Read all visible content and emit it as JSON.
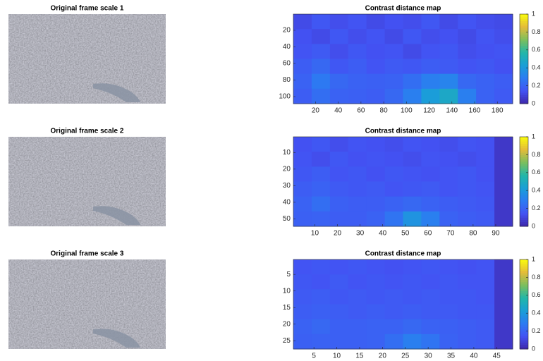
{
  "chart_data": [
    {
      "type": "image",
      "title": "Original frame scale 1"
    },
    {
      "type": "heatmap",
      "title": "Contrast distance map",
      "xlim": [
        0.5,
        193.5
      ],
      "ylim": [
        0.5,
        108.5
      ],
      "xticks": [
        20,
        40,
        60,
        80,
        100,
        120,
        140,
        160,
        180
      ],
      "yticks": [
        20,
        40,
        60,
        80,
        100
      ],
      "clim": [
        0,
        1
      ],
      "cticks": [
        0,
        0.2,
        0.4,
        0.6,
        0.8,
        1
      ],
      "colormap": [
        "#3e26a8",
        "#4352f3",
        "#2c7bf2",
        "#1a9fd7",
        "#22b6a9",
        "#7bbf5e",
        "#e4bb3a",
        "#f9fb0e"
      ],
      "values": [
        [
          0.12,
          0.16,
          0.13,
          0.15,
          0.12,
          0.14,
          0.13,
          0.16,
          0.12,
          0.15,
          0.13,
          0.12
        ],
        [
          0.14,
          0.12,
          0.16,
          0.13,
          0.15,
          0.12,
          0.16,
          0.13,
          0.14,
          0.12,
          0.15,
          0.13
        ],
        [
          0.15,
          0.17,
          0.13,
          0.16,
          0.14,
          0.15,
          0.12,
          0.15,
          0.16,
          0.13,
          0.14,
          0.15
        ],
        [
          0.18,
          0.22,
          0.16,
          0.18,
          0.15,
          0.17,
          0.16,
          0.18,
          0.17,
          0.15,
          0.16,
          0.14
        ],
        [
          0.2,
          0.28,
          0.22,
          0.2,
          0.19,
          0.2,
          0.24,
          0.3,
          0.32,
          0.22,
          0.2,
          0.18
        ],
        [
          0.18,
          0.24,
          0.2,
          0.19,
          0.18,
          0.22,
          0.3,
          0.42,
          0.48,
          0.3,
          0.2,
          0.17
        ]
      ]
    },
    {
      "type": "image",
      "title": "Original frame scale 2"
    },
    {
      "type": "heatmap",
      "title": "Contrast distance map",
      "xlim": [
        0.5,
        97.5
      ],
      "ylim": [
        0.5,
        54.5
      ],
      "xticks": [
        10,
        20,
        30,
        40,
        50,
        60,
        70,
        80,
        90
      ],
      "yticks": [
        10,
        20,
        30,
        40,
        50
      ],
      "clim": [
        0,
        1
      ],
      "cticks": [
        0,
        0.2,
        0.4,
        0.6,
        0.8,
        1
      ],
      "colormap": [
        "#3e26a8",
        "#4352f3",
        "#2c7bf2",
        "#1a9fd7",
        "#22b6a9",
        "#7bbf5e",
        "#e4bb3a",
        "#f9fb0e"
      ],
      "values": [
        [
          0.14,
          0.16,
          0.13,
          0.15,
          0.14,
          0.13,
          0.15,
          0.14,
          0.13,
          0.15,
          0.14,
          0.06
        ],
        [
          0.15,
          0.13,
          0.16,
          0.14,
          0.15,
          0.14,
          0.13,
          0.15,
          0.14,
          0.13,
          0.14,
          0.06
        ],
        [
          0.16,
          0.18,
          0.15,
          0.16,
          0.14,
          0.16,
          0.15,
          0.14,
          0.15,
          0.16,
          0.14,
          0.06
        ],
        [
          0.18,
          0.2,
          0.17,
          0.16,
          0.17,
          0.15,
          0.16,
          0.17,
          0.15,
          0.16,
          0.15,
          0.06
        ],
        [
          0.2,
          0.24,
          0.19,
          0.18,
          0.18,
          0.2,
          0.22,
          0.2,
          0.18,
          0.17,
          0.16,
          0.06
        ],
        [
          0.19,
          0.2,
          0.18,
          0.18,
          0.2,
          0.26,
          0.38,
          0.3,
          0.2,
          0.18,
          0.17,
          0.06
        ]
      ]
    },
    {
      "type": "image",
      "title": "Original frame scale 3"
    },
    {
      "type": "heatmap",
      "title": "Contrast distance map",
      "xlim": [
        0.5,
        48.5
      ],
      "ylim": [
        0.5,
        27.5
      ],
      "xticks": [
        5,
        10,
        15,
        20,
        25,
        30,
        35,
        40,
        45
      ],
      "yticks": [
        5,
        10,
        15,
        20,
        25
      ],
      "clim": [
        0,
        1
      ],
      "cticks": [
        0,
        0.2,
        0.4,
        0.6,
        0.8,
        1
      ],
      "colormap": [
        "#3e26a8",
        "#4352f3",
        "#2c7bf2",
        "#1a9fd7",
        "#22b6a9",
        "#7bbf5e",
        "#e4bb3a",
        "#f9fb0e"
      ],
      "values": [
        [
          0.15,
          0.16,
          0.15,
          0.16,
          0.15,
          0.14,
          0.15,
          0.16,
          0.15,
          0.14,
          0.15,
          0.06
        ],
        [
          0.16,
          0.15,
          0.17,
          0.15,
          0.16,
          0.15,
          0.16,
          0.15,
          0.16,
          0.15,
          0.15,
          0.06
        ],
        [
          0.17,
          0.18,
          0.16,
          0.17,
          0.16,
          0.17,
          0.16,
          0.17,
          0.16,
          0.16,
          0.15,
          0.06
        ],
        [
          0.18,
          0.19,
          0.18,
          0.17,
          0.18,
          0.17,
          0.18,
          0.17,
          0.17,
          0.16,
          0.16,
          0.06
        ],
        [
          0.2,
          0.22,
          0.19,
          0.19,
          0.2,
          0.2,
          0.22,
          0.2,
          0.19,
          0.18,
          0.17,
          0.06
        ],
        [
          0.19,
          0.2,
          0.19,
          0.19,
          0.2,
          0.24,
          0.3,
          0.26,
          0.2,
          0.18,
          0.17,
          0.06
        ]
      ]
    }
  ]
}
